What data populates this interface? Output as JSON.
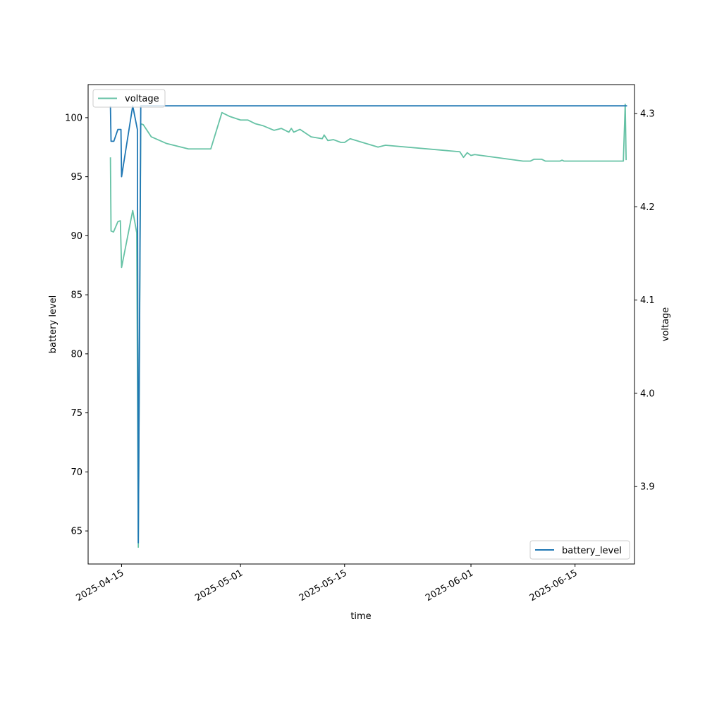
{
  "chart_data": {
    "type": "line",
    "title": "",
    "xlabel": "time",
    "ylabel_left": "battery level",
    "ylabel_right": "voltage",
    "xlim": [
      "2025-04-10T12:00",
      "2025-06-23T00:00"
    ],
    "ylim_left": [
      62.2,
      102.8
    ],
    "ylim_right": [
      3.817,
      4.331
    ],
    "yticks_left": [
      65,
      70,
      75,
      80,
      85,
      90,
      95,
      100
    ],
    "yticks_right": [
      3.9,
      4.0,
      4.1,
      4.2,
      4.3
    ],
    "xticks": [
      "2025-04-15",
      "2025-05-01",
      "2025-05-15",
      "2025-06-01",
      "2025-06-15"
    ],
    "grid": false,
    "colors": {
      "battery_level": "#1f77b4",
      "voltage": "#66c2a5"
    },
    "series": [
      {
        "name": "battery_level",
        "axis": "left",
        "legend_position": "lower-right",
        "points": [
          [
            "2025-04-13T12:00",
            101
          ],
          [
            "2025-04-13T14:00",
            98
          ],
          [
            "2025-04-13T23:00",
            98
          ],
          [
            "2025-04-14T12:00",
            99
          ],
          [
            "2025-04-14T22:00",
            99
          ],
          [
            "2025-04-15T00:00",
            95
          ],
          [
            "2025-04-16T12:00",
            101
          ],
          [
            "2025-04-17T03:00",
            99
          ],
          [
            "2025-04-17T06:00",
            64
          ],
          [
            "2025-04-17T14:00",
            101
          ],
          [
            "2025-06-22T00:00",
            101
          ]
        ]
      },
      {
        "name": "voltage",
        "axis": "right",
        "legend_position": "upper-left",
        "points": [
          [
            "2025-04-13T12:00",
            4.253
          ],
          [
            "2025-04-13T14:00",
            4.174
          ],
          [
            "2025-04-13T22:00",
            4.173
          ],
          [
            "2025-04-14T12:00",
            4.184
          ],
          [
            "2025-04-14T20:00",
            4.185
          ],
          [
            "2025-04-15T00:00",
            4.135
          ],
          [
            "2025-04-16T12:00",
            4.196
          ],
          [
            "2025-04-17T01:00",
            4.172
          ],
          [
            "2025-04-17T06:00",
            3.835
          ],
          [
            "2025-04-17T14:00",
            4.289
          ],
          [
            "2025-04-17T22:00",
            4.288
          ],
          [
            "2025-04-19T00:00",
            4.275
          ],
          [
            "2025-04-21T00:00",
            4.268
          ],
          [
            "2025-04-22T00:00",
            4.266
          ],
          [
            "2025-04-24T00:00",
            4.262
          ],
          [
            "2025-04-27T00:00",
            4.262
          ],
          [
            "2025-04-28T12:00",
            4.301
          ],
          [
            "2025-04-29T12:00",
            4.297
          ],
          [
            "2025-05-01T00:00",
            4.293
          ],
          [
            "2025-05-02T00:00",
            4.293
          ],
          [
            "2025-05-03T00:00",
            4.289
          ],
          [
            "2025-05-04T00:00",
            4.287
          ],
          [
            "2025-05-05T12:00",
            4.282
          ],
          [
            "2025-05-06T12:00",
            4.284
          ],
          [
            "2025-05-07T12:00",
            4.28
          ],
          [
            "2025-05-07T20:00",
            4.284
          ],
          [
            "2025-05-08T04:00",
            4.28
          ],
          [
            "2025-05-09T00:00",
            4.283
          ],
          [
            "2025-05-10T12:00",
            4.275
          ],
          [
            "2025-05-12T00:00",
            4.273
          ],
          [
            "2025-05-12T06:00",
            4.277
          ],
          [
            "2025-05-12T18:00",
            4.271
          ],
          [
            "2025-05-13T12:00",
            4.272
          ],
          [
            "2025-05-14T12:00",
            4.269
          ],
          [
            "2025-05-15T00:00",
            4.269
          ],
          [
            "2025-05-15T18:00",
            4.273
          ],
          [
            "2025-05-19T12:00",
            4.264
          ],
          [
            "2025-05-20T12:00",
            4.266
          ],
          [
            "2025-05-30T12:00",
            4.259
          ],
          [
            "2025-05-31T00:00",
            4.253
          ],
          [
            "2025-05-31T12:00",
            4.258
          ],
          [
            "2025-06-01T00:00",
            4.255
          ],
          [
            "2025-06-01T12:00",
            4.256
          ],
          [
            "2025-06-08T00:00",
            4.249
          ],
          [
            "2025-06-09T00:00",
            4.249
          ],
          [
            "2025-06-09T12:00",
            4.251
          ],
          [
            "2025-06-10T12:00",
            4.251
          ],
          [
            "2025-06-11T00:00",
            4.249
          ],
          [
            "2025-06-13T00:00",
            4.249
          ],
          [
            "2025-06-13T06:00",
            4.25
          ],
          [
            "2025-06-13T12:00",
            4.249
          ],
          [
            "2025-06-21T12:00",
            4.249
          ],
          [
            "2025-06-21T18:00",
            4.31
          ],
          [
            "2025-06-21T21:00",
            4.25
          ]
        ]
      }
    ]
  }
}
